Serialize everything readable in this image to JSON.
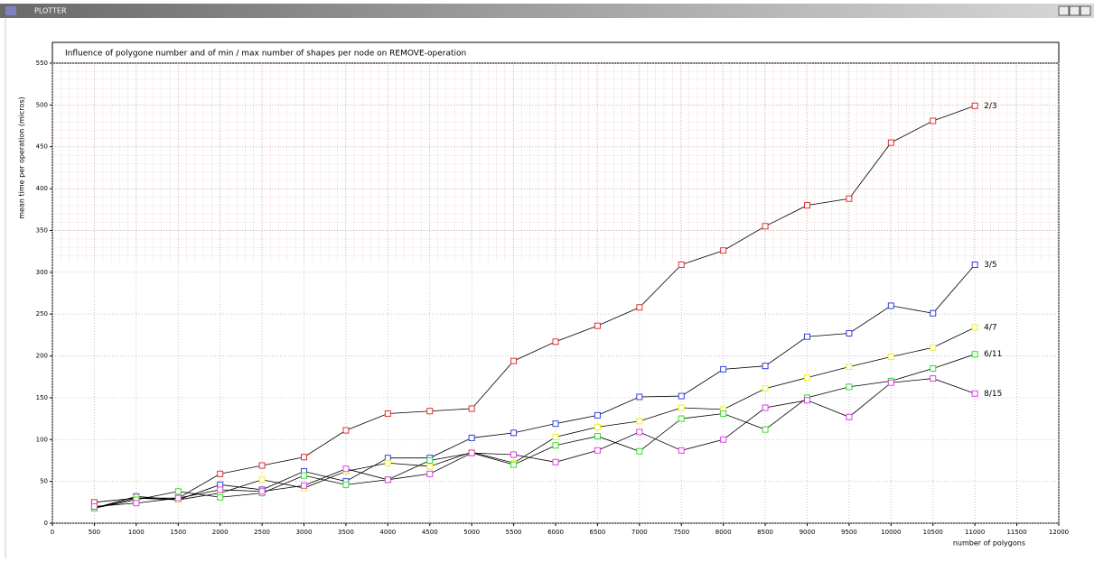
{
  "window": {
    "title": "PLOTTER"
  },
  "chart_data": {
    "type": "line",
    "title": "Influence of polygone number and of min / max number of shapes per node on REMOVE-operation",
    "xlabel": "number of polygons",
    "ylabel": "mean time per operation  (micros)",
    "x": [
      500,
      1000,
      1500,
      2000,
      2500,
      3000,
      3500,
      4000,
      4500,
      5000,
      5500,
      6000,
      6500,
      7000,
      7500,
      8000,
      8500,
      9000,
      9500,
      10000,
      10500,
      11000
    ],
    "series": [
      {
        "name": "2/3",
        "color": "#e03030",
        "values": [
          25,
          30,
          30,
          59,
          69,
          79,
          111,
          131,
          134,
          137,
          194,
          217,
          236,
          258,
          309,
          326,
          355,
          380,
          388,
          455,
          481,
          499
        ]
      },
      {
        "name": "3/5",
        "color": "#3040e0",
        "values": [
          18,
          32,
          28,
          46,
          40,
          62,
          50,
          78,
          78,
          102,
          108,
          119,
          129,
          151,
          152,
          184,
          188,
          223,
          227,
          260,
          251,
          309
        ]
      },
      {
        "name": "4/7",
        "color": "#f0f020",
        "values": [
          18,
          30,
          28,
          36,
          52,
          42,
          62,
          72,
          68,
          85,
          72,
          103,
          115,
          122,
          138,
          136,
          161,
          174,
          187,
          199,
          210,
          234
        ]
      },
      {
        "name": "6/11",
        "color": "#30e030",
        "values": [
          18,
          28,
          38,
          31,
          36,
          57,
          46,
          52,
          75,
          84,
          70,
          93,
          104,
          86,
          125,
          131,
          112,
          150,
          163,
          170,
          185,
          202
        ]
      },
      {
        "name": "8/15",
        "color": "#e040e0",
        "values": [
          20,
          24,
          30,
          40,
          38,
          45,
          65,
          52,
          59,
          84,
          82,
          73,
          87,
          109,
          87,
          100,
          138,
          147,
          127,
          168,
          173,
          155
        ]
      }
    ],
    "xlim": [
      0,
      12000
    ],
    "xticks": [
      0,
      500,
      1000,
      1500,
      2000,
      2500,
      3000,
      3500,
      4000,
      4500,
      5000,
      5500,
      6000,
      6500,
      7000,
      7500,
      8000,
      8500,
      9000,
      9500,
      10000,
      10500,
      11000,
      11500,
      12000
    ],
    "ylim": [
      0,
      550
    ],
    "yticks": [
      0,
      50,
      100,
      150,
      200,
      250,
      300,
      350,
      400,
      450,
      500,
      550
    ],
    "grid": true,
    "line_color": "#000000"
  }
}
